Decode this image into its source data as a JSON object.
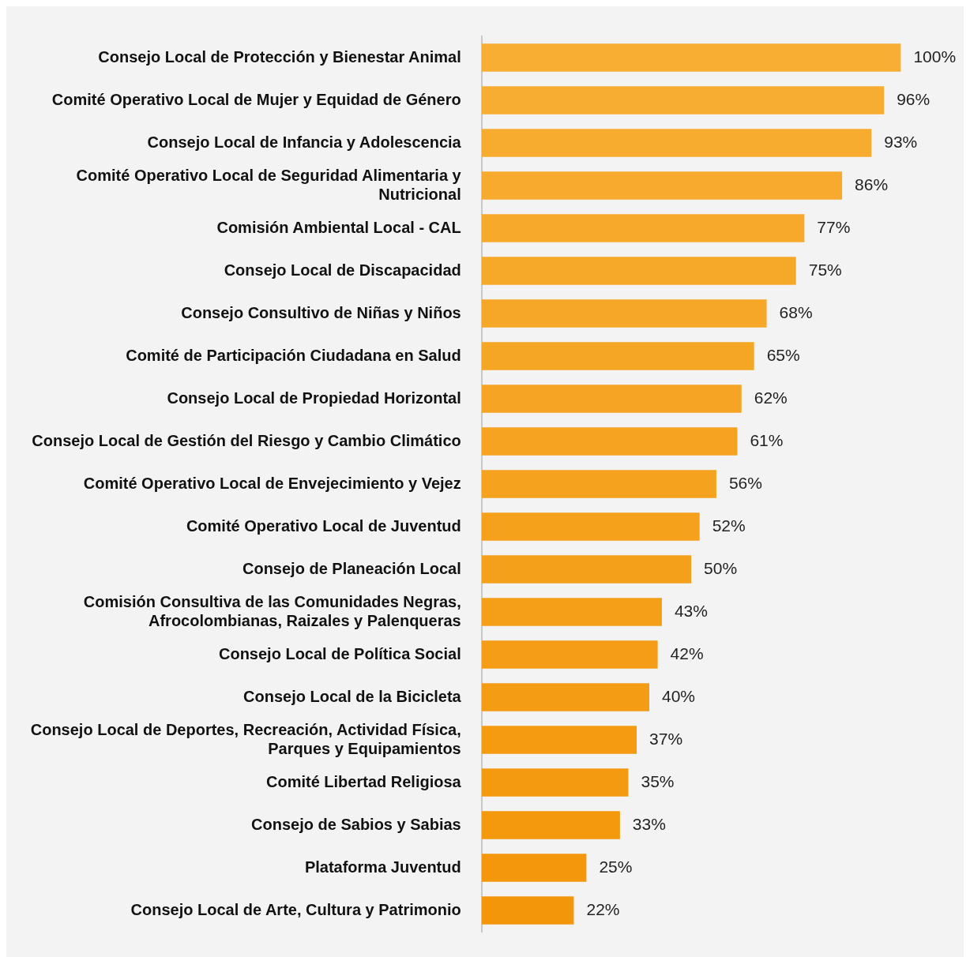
{
  "chart_data": {
    "type": "bar",
    "orientation": "horizontal",
    "categories": [
      "Consejo Local de Protección y Bienestar Animal",
      "Comité Operativo Local de Mujer y Equidad de Género",
      "Consejo Local de Infancia y Adolescencia",
      "Comité Operativo Local de Seguridad Alimentaria y Nutricional",
      "Comisión Ambiental Local - CAL",
      "Consejo Local de Discapacidad",
      "Consejo Consultivo de Niñas y Niños",
      "Comité de Participación Ciudadana en Salud",
      "Consejo Local de Propiedad Horizontal",
      "Consejo Local de Gestión del Riesgo y Cambio Climático",
      "Comité Operativo Local de Envejecimiento y Vejez",
      "Comité Operativo Local de Juventud",
      "Consejo de Planeación Local",
      "Comisión Consultiva de las Comunidades Negras, Afrocolombianas, Raizales y Palenqueras",
      "Consejo Local de Política Social",
      "Consejo Local de la Bicicleta",
      "Consejo Local de Deportes, Recreación, Actividad Física, Parques y Equipamientos",
      "Comité Libertad Religiosa",
      "Consejo de Sabios y Sabias",
      "Plataforma Juventud",
      "Consejo Local de Arte, Cultura y Patrimonio"
    ],
    "values": [
      100,
      96,
      93,
      86,
      77,
      75,
      68,
      65,
      62,
      61,
      56,
      52,
      50,
      43,
      42,
      40,
      37,
      35,
      33,
      25,
      22
    ],
    "value_labels": [
      "100%",
      "96%",
      "93%",
      "86%",
      "77%",
      "75%",
      "68%",
      "65%",
      "62%",
      "61%",
      "56%",
      "52%",
      "50%",
      "43%",
      "42%",
      "40%",
      "37%",
      "35%",
      "33%",
      "25%",
      "22%"
    ],
    "colors": [
      "#f7ae33",
      "#f7ad31",
      "#f7ac2f",
      "#f7aa2d",
      "#f7a92b",
      "#f6a829",
      "#f6a727",
      "#f6a625",
      "#f6a423",
      "#f6a321",
      "#f5a21f",
      "#f5a11c",
      "#f5a01a",
      "#f59e18",
      "#f59d16",
      "#f49c14",
      "#f49b12",
      "#f49a10",
      "#f4980e",
      "#f4970c",
      "#f3960a"
    ],
    "xlim": [
      0,
      115
    ],
    "tick_labels": "y",
    "grid": false,
    "legend": false
  }
}
